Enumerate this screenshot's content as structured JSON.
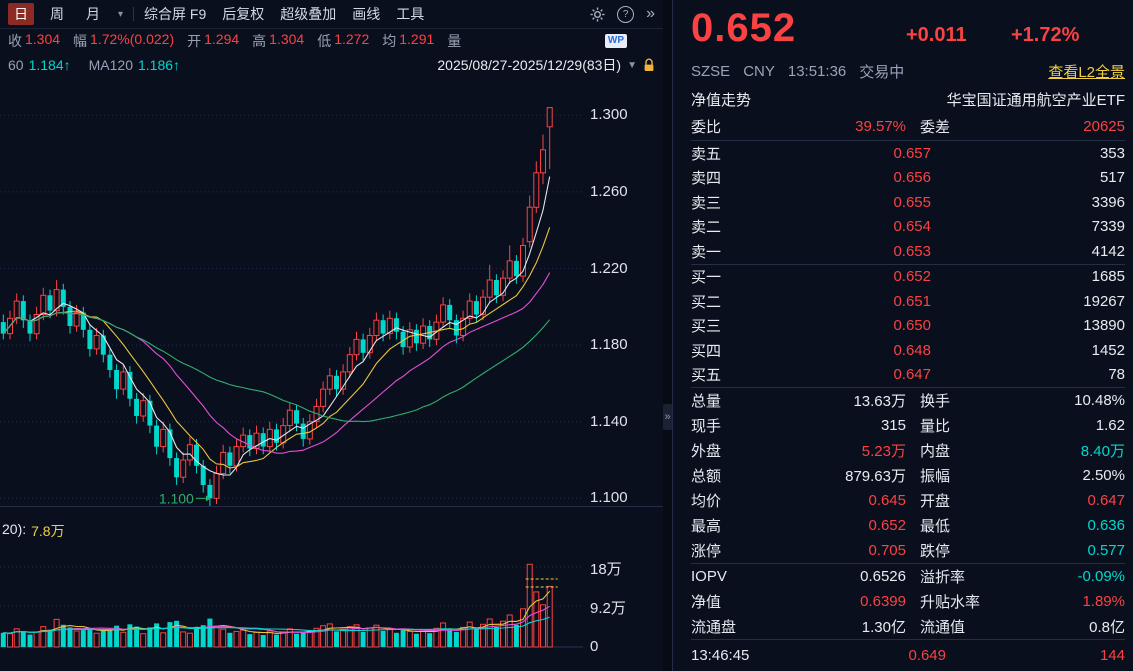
{
  "colors": {
    "up": "#fb4242",
    "down": "#00d7cd",
    "accent_yellow": "#f0d040",
    "text": "#e9ebf0",
    "label": "#97a0b4"
  },
  "toolbar": {
    "period_tabs": [
      {
        "label": "日",
        "active": true
      },
      {
        "label": "周",
        "active": false
      },
      {
        "label": "月",
        "active": false
      }
    ],
    "caret": "▾",
    "menu_items": [
      "综合屏 F9",
      "后复权",
      "超级叠加",
      "画线",
      "工具"
    ],
    "icons": {
      "settings": "gear",
      "help": "?",
      "collapse": "»"
    }
  },
  "infobar": {
    "items": [
      {
        "label": "收",
        "value": "1.304",
        "color": "r"
      },
      {
        "label": "幅",
        "value": "1.72%(0.022)",
        "color": "r"
      },
      {
        "label": "开",
        "value": "1.294",
        "color": "r"
      },
      {
        "label": "高",
        "value": "1.304",
        "color": "r"
      },
      {
        "label": "低",
        "value": "1.272",
        "color": "r"
      },
      {
        "label": "均",
        "value": "1.291",
        "color": "r"
      },
      {
        "label": "量",
        "value": "",
        "color": "r"
      }
    ],
    "wp_badge": "WP"
  },
  "mabar": {
    "ma_labels": [
      {
        "label": "60",
        "value": "1.184↑",
        "color": "g"
      },
      {
        "label": "MA120",
        "value": "1.186↑",
        "color": "g"
      }
    ],
    "date_range": "2025/08/27-2025/12/29(83日)",
    "dropdown": "▼"
  },
  "volume_pane": {
    "indicator_label": "20):",
    "indicator_value": "7.8万"
  },
  "chart_data": {
    "type": "candlestick",
    "title": "华宝国证通用航空产业ETF 日K(后复权)",
    "date_range": "2025/08/27-2025/12/29(83日)",
    "ylim": [
      1.096,
      1.32
    ],
    "price_axis": [
      {
        "label": "1.300",
        "value": 1.3
      },
      {
        "label": "1.260",
        "value": 1.26
      },
      {
        "label": "1.220",
        "value": 1.22
      },
      {
        "label": "1.180",
        "value": 1.18
      },
      {
        "label": "1.140",
        "value": 1.14
      },
      {
        "label": "1.100",
        "value": 1.1
      }
    ],
    "vol_axis": [
      {
        "label": "18万",
        "value": 18
      },
      {
        "label": "9.2万",
        "value": 9.2
      },
      {
        "label": "0",
        "value": 0
      }
    ],
    "annotation": {
      "text": "1.100",
      "price": 1.1
    },
    "price_mas": [
      {
        "period": 5,
        "color": "#e3e6ec"
      },
      {
        "period": 10,
        "color": "#e8c63c"
      },
      {
        "period": 20,
        "color": "#e44fd5"
      },
      {
        "period": 40,
        "color": "#2fae6b"
      }
    ],
    "vol_mas": [
      {
        "period": 5,
        "color": "#e8c63c"
      },
      {
        "period": 10,
        "color": "#e44fd5"
      },
      {
        "period": 20,
        "color": "#00d7cd"
      }
    ],
    "candles": [
      [
        1.192,
        1.196,
        1.183,
        1.186,
        3.2
      ],
      [
        1.186,
        1.198,
        1.183,
        1.194,
        3.0
      ],
      [
        1.194,
        1.207,
        1.191,
        1.203,
        4.1
      ],
      [
        1.203,
        1.206,
        1.189,
        1.193,
        3.5
      ],
      [
        1.193,
        1.196,
        1.182,
        1.186,
        2.8
      ],
      [
        1.186,
        1.2,
        1.183,
        1.196,
        3.4
      ],
      [
        1.196,
        1.21,
        1.193,
        1.206,
        4.6
      ],
      [
        1.206,
        1.209,
        1.194,
        1.198,
        3.9
      ],
      [
        1.198,
        1.214,
        1.195,
        1.209,
        6.2
      ],
      [
        1.209,
        1.212,
        1.196,
        1.2,
        5.0
      ],
      [
        1.2,
        1.203,
        1.186,
        1.19,
        4.4
      ],
      [
        1.19,
        1.201,
        1.187,
        1.197,
        3.6
      ],
      [
        1.197,
        1.2,
        1.184,
        1.188,
        3.8
      ],
      [
        1.188,
        1.191,
        1.174,
        1.178,
        4.2
      ],
      [
        1.178,
        1.189,
        1.175,
        1.185,
        3.1
      ],
      [
        1.185,
        1.188,
        1.171,
        1.175,
        3.7
      ],
      [
        1.175,
        1.178,
        1.163,
        1.167,
        4.0
      ],
      [
        1.167,
        1.17,
        1.152,
        1.157,
        4.8
      ],
      [
        1.157,
        1.17,
        1.154,
        1.166,
        3.3
      ],
      [
        1.166,
        1.169,
        1.148,
        1.152,
        5.1
      ],
      [
        1.152,
        1.155,
        1.139,
        1.143,
        4.6
      ],
      [
        1.143,
        1.155,
        1.14,
        1.151,
        3.0
      ],
      [
        1.151,
        1.154,
        1.134,
        1.138,
        4.4
      ],
      [
        1.138,
        1.141,
        1.123,
        1.127,
        5.3
      ],
      [
        1.127,
        1.14,
        1.124,
        1.136,
        3.2
      ],
      [
        1.136,
        1.139,
        1.117,
        1.121,
        5.6
      ],
      [
        1.121,
        1.124,
        1.107,
        1.111,
        5.9
      ],
      [
        1.111,
        1.124,
        1.108,
        1.12,
        3.4
      ],
      [
        1.12,
        1.132,
        1.117,
        1.128,
        3.1
      ],
      [
        1.128,
        1.131,
        1.113,
        1.117,
        4.2
      ],
      [
        1.117,
        1.12,
        1.103,
        1.107,
        4.9
      ],
      [
        1.107,
        1.11,
        1.096,
        1.1,
        6.4
      ],
      [
        1.1,
        1.117,
        1.097,
        1.113,
        4.7
      ],
      [
        1.113,
        1.128,
        1.11,
        1.124,
        4.0
      ],
      [
        1.124,
        1.127,
        1.113,
        1.117,
        3.2
      ],
      [
        1.117,
        1.131,
        1.114,
        1.127,
        3.5
      ],
      [
        1.127,
        1.137,
        1.124,
        1.133,
        3.8
      ],
      [
        1.133,
        1.136,
        1.122,
        1.126,
        2.9
      ],
      [
        1.126,
        1.138,
        1.123,
        1.134,
        3.3
      ],
      [
        1.134,
        1.137,
        1.123,
        1.127,
        2.7
      ],
      [
        1.127,
        1.14,
        1.124,
        1.136,
        3.6
      ],
      [
        1.136,
        1.139,
        1.125,
        1.129,
        2.8
      ],
      [
        1.129,
        1.142,
        1.126,
        1.138,
        3.4
      ],
      [
        1.138,
        1.15,
        1.135,
        1.146,
        4.1
      ],
      [
        1.146,
        1.149,
        1.135,
        1.139,
        3.0
      ],
      [
        1.139,
        1.142,
        1.127,
        1.131,
        3.3
      ],
      [
        1.131,
        1.144,
        1.128,
        1.14,
        3.7
      ],
      [
        1.14,
        1.152,
        1.137,
        1.148,
        4.2
      ],
      [
        1.148,
        1.161,
        1.145,
        1.157,
        4.8
      ],
      [
        1.157,
        1.168,
        1.154,
        1.164,
        5.2
      ],
      [
        1.164,
        1.167,
        1.153,
        1.157,
        3.5
      ],
      [
        1.157,
        1.17,
        1.154,
        1.166,
        4.0
      ],
      [
        1.166,
        1.179,
        1.163,
        1.175,
        4.6
      ],
      [
        1.175,
        1.187,
        1.172,
        1.183,
        5.0
      ],
      [
        1.183,
        1.186,
        1.172,
        1.176,
        3.4
      ],
      [
        1.176,
        1.189,
        1.173,
        1.185,
        4.3
      ],
      [
        1.185,
        1.197,
        1.182,
        1.193,
        4.9
      ],
      [
        1.193,
        1.196,
        1.182,
        1.186,
        3.6
      ],
      [
        1.186,
        1.198,
        1.183,
        1.194,
        4.1
      ],
      [
        1.194,
        1.197,
        1.183,
        1.187,
        3.2
      ],
      [
        1.187,
        1.19,
        1.175,
        1.179,
        3.8
      ],
      [
        1.179,
        1.192,
        1.176,
        1.188,
        3.5
      ],
      [
        1.188,
        1.191,
        1.177,
        1.181,
        3.0
      ],
      [
        1.181,
        1.194,
        1.178,
        1.19,
        3.9
      ],
      [
        1.19,
        1.193,
        1.179,
        1.183,
        3.1
      ],
      [
        1.183,
        1.196,
        1.18,
        1.192,
        4.2
      ],
      [
        1.192,
        1.205,
        1.189,
        1.201,
        5.4
      ],
      [
        1.201,
        1.204,
        1.189,
        1.193,
        3.9
      ],
      [
        1.193,
        1.196,
        1.181,
        1.185,
        3.4
      ],
      [
        1.185,
        1.198,
        1.182,
        1.194,
        4.4
      ],
      [
        1.194,
        1.207,
        1.191,
        1.203,
        5.6
      ],
      [
        1.203,
        1.206,
        1.192,
        1.196,
        4.0
      ],
      [
        1.196,
        1.209,
        1.193,
        1.205,
        5.1
      ],
      [
        1.205,
        1.222,
        1.202,
        1.214,
        6.3
      ],
      [
        1.214,
        1.217,
        1.202,
        1.206,
        4.5
      ],
      [
        1.206,
        1.219,
        1.203,
        1.215,
        5.8
      ],
      [
        1.215,
        1.232,
        1.212,
        1.224,
        7.2
      ],
      [
        1.224,
        1.227,
        1.212,
        1.216,
        5.0
      ],
      [
        1.216,
        1.236,
        1.213,
        1.232,
        8.6
      ],
      [
        1.234,
        1.258,
        1.231,
        1.252,
        18.6
      ],
      [
        1.252,
        1.276,
        1.249,
        1.27,
        12.4
      ],
      [
        1.27,
        1.29,
        1.264,
        1.282,
        9.5
      ],
      [
        1.294,
        1.304,
        1.272,
        1.304,
        13.63
      ]
    ]
  },
  "quote": {
    "price": "0.652",
    "change": "+0.011",
    "change_pct": "+1.72%",
    "exchange": "SZSE",
    "currency": "CNY",
    "time": "13:51:36",
    "status": "交易中",
    "l2_link": "查看L2全景",
    "tab_label": "净值走势",
    "security_name": "华宝国证通用航空产业ETF",
    "weibi_label": "委比",
    "weibi_value": "39.57%",
    "weicha_label": "委差",
    "weicha_value": "20625"
  },
  "order_book": {
    "asks": [
      {
        "label": "卖五",
        "price": "0.657",
        "vol": "353"
      },
      {
        "label": "卖四",
        "price": "0.656",
        "vol": "517"
      },
      {
        "label": "卖三",
        "price": "0.655",
        "vol": "3396"
      },
      {
        "label": "卖二",
        "price": "0.654",
        "vol": "7339"
      },
      {
        "label": "卖一",
        "price": "0.653",
        "vol": "4142"
      }
    ],
    "bids": [
      {
        "label": "买一",
        "price": "0.652",
        "vol": "1685"
      },
      {
        "label": "买二",
        "price": "0.651",
        "vol": "19267"
      },
      {
        "label": "买三",
        "price": "0.650",
        "vol": "13890"
      },
      {
        "label": "买四",
        "price": "0.648",
        "vol": "1452"
      },
      {
        "label": "买五",
        "price": "0.647",
        "vol": "78"
      }
    ]
  },
  "stats": {
    "rows": [
      {
        "l1": "总量",
        "v1": "13.63万",
        "c1": "w",
        "l2": "换手",
        "v2": "10.48%",
        "c2": "w"
      },
      {
        "l1": "现手",
        "v1": "315",
        "c1": "w",
        "l2": "量比",
        "v2": "1.62",
        "c2": "w"
      },
      {
        "l1": "外盘",
        "v1": "5.23万",
        "c1": "r",
        "l2": "内盘",
        "v2": "8.40万",
        "c2": "g"
      },
      {
        "l1": "总额",
        "v1": "879.63万",
        "c1": "w",
        "l2": "振幅",
        "v2": "2.50%",
        "c2": "w"
      },
      {
        "l1": "均价",
        "v1": "0.645",
        "c1": "r",
        "l2": "开盘",
        "v2": "0.647",
        "c2": "r"
      },
      {
        "l1": "最高",
        "v1": "0.652",
        "c1": "r",
        "l2": "最低",
        "v2": "0.636",
        "c2": "g"
      },
      {
        "l1": "涨停",
        "v1": "0.705",
        "c1": "r",
        "l2": "跌停",
        "v2": "0.577",
        "c2": "g"
      }
    ],
    "rows2": [
      {
        "l1": "IOPV",
        "v1": "0.6526",
        "c1": "w",
        "l2": "溢折率",
        "v2": "-0.09%",
        "c2": "g"
      },
      {
        "l1": "净值",
        "v1": "0.6399",
        "c1": "r",
        "l2": "升贴水率",
        "v2": "1.89%",
        "c2": "r"
      },
      {
        "l1": "流通盘",
        "v1": "1.30亿",
        "c1": "w",
        "l2": "流通值",
        "v2": "0.8亿",
        "c2": "w"
      }
    ]
  },
  "tick": {
    "time": "13:46:45",
    "price": "0.649",
    "volume": "144"
  }
}
